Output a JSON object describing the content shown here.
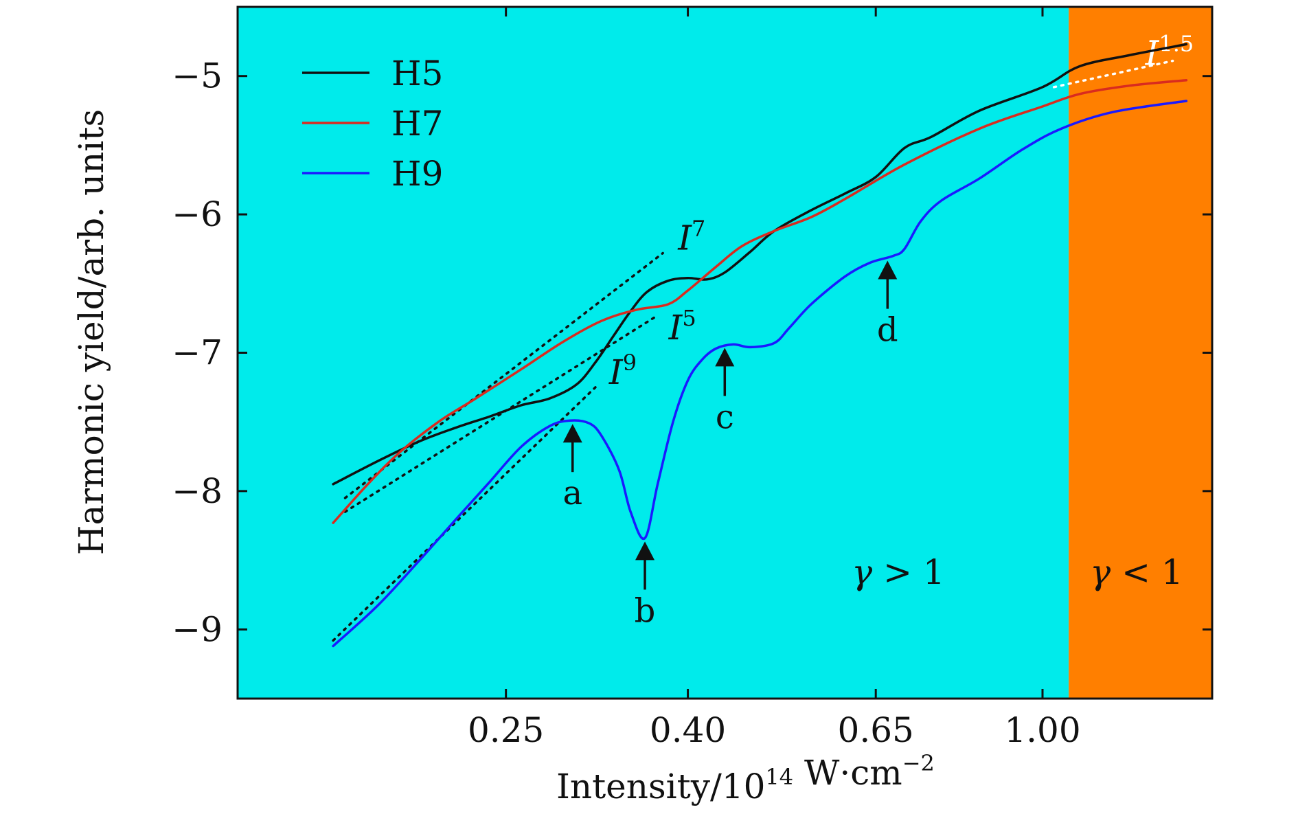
{
  "chart_data": {
    "type": "line",
    "title": "",
    "xlabel": "Intensity/10^14 W·cm^−2",
    "ylabel": "Harmonic yield/arb. units",
    "x_scale": "log",
    "xlim": [
      0.125,
      1.55
    ],
    "ylim": [
      -9.5,
      -4.5
    ],
    "x_ticks": [
      {
        "value": 0.25,
        "label": "0.25"
      },
      {
        "value": 0.4,
        "label": "0.40"
      },
      {
        "value": 0.65,
        "label": "0.65"
      },
      {
        "value": 1.0,
        "label": "1.00"
      }
    ],
    "y_ticks": [
      {
        "value": -5,
        "label": "−5"
      },
      {
        "value": -6,
        "label": "−6"
      },
      {
        "value": -7,
        "label": "−7"
      },
      {
        "value": -8,
        "label": "−8"
      },
      {
        "value": -9,
        "label": "−9"
      }
    ],
    "legend": {
      "position": "top-left"
    },
    "series": [
      {
        "name": "H5",
        "color": "#111111",
        "points": [
          [
            0.16,
            -7.95
          ],
          [
            0.18,
            -7.78
          ],
          [
            0.2,
            -7.64
          ],
          [
            0.22,
            -7.54
          ],
          [
            0.24,
            -7.46
          ],
          [
            0.26,
            -7.38
          ],
          [
            0.28,
            -7.33
          ],
          [
            0.3,
            -7.23
          ],
          [
            0.315,
            -7.07
          ],
          [
            0.33,
            -6.88
          ],
          [
            0.345,
            -6.7
          ],
          [
            0.36,
            -6.56
          ],
          [
            0.38,
            -6.48
          ],
          [
            0.4,
            -6.46
          ],
          [
            0.42,
            -6.47
          ],
          [
            0.44,
            -6.42
          ],
          [
            0.47,
            -6.27
          ],
          [
            0.5,
            -6.12
          ],
          [
            0.55,
            -5.97
          ],
          [
            0.6,
            -5.85
          ],
          [
            0.65,
            -5.73
          ],
          [
            0.7,
            -5.52
          ],
          [
            0.75,
            -5.44
          ],
          [
            0.85,
            -5.25
          ],
          [
            1.0,
            -5.08
          ],
          [
            1.1,
            -4.93
          ],
          [
            1.25,
            -4.85
          ],
          [
            1.45,
            -4.77
          ]
        ]
      },
      {
        "name": "H7",
        "color": "#d92b1f",
        "points": [
          [
            0.16,
            -8.23
          ],
          [
            0.175,
            -7.95
          ],
          [
            0.19,
            -7.72
          ],
          [
            0.21,
            -7.5
          ],
          [
            0.23,
            -7.34
          ],
          [
            0.26,
            -7.12
          ],
          [
            0.29,
            -6.92
          ],
          [
            0.32,
            -6.77
          ],
          [
            0.35,
            -6.69
          ],
          [
            0.38,
            -6.65
          ],
          [
            0.4,
            -6.55
          ],
          [
            0.43,
            -6.38
          ],
          [
            0.46,
            -6.23
          ],
          [
            0.5,
            -6.12
          ],
          [
            0.55,
            -6.02
          ],
          [
            0.6,
            -5.89
          ],
          [
            0.7,
            -5.64
          ],
          [
            0.85,
            -5.38
          ],
          [
            1.0,
            -5.22
          ],
          [
            1.1,
            -5.13
          ],
          [
            1.25,
            -5.07
          ],
          [
            1.45,
            -5.03
          ]
        ]
      },
      {
        "name": "H9",
        "color": "#1a1aff",
        "points": [
          [
            0.16,
            -9.12
          ],
          [
            0.18,
            -8.82
          ],
          [
            0.2,
            -8.5
          ],
          [
            0.22,
            -8.2
          ],
          [
            0.24,
            -7.93
          ],
          [
            0.26,
            -7.68
          ],
          [
            0.28,
            -7.53
          ],
          [
            0.295,
            -7.49
          ],
          [
            0.31,
            -7.51
          ],
          [
            0.32,
            -7.6
          ],
          [
            0.335,
            -7.85
          ],
          [
            0.345,
            -8.15
          ],
          [
            0.358,
            -8.34
          ],
          [
            0.37,
            -7.95
          ],
          [
            0.385,
            -7.5
          ],
          [
            0.4,
            -7.2
          ],
          [
            0.415,
            -7.05
          ],
          [
            0.43,
            -6.97
          ],
          [
            0.45,
            -6.94
          ],
          [
            0.47,
            -6.96
          ],
          [
            0.5,
            -6.93
          ],
          [
            0.52,
            -6.82
          ],
          [
            0.55,
            -6.65
          ],
          [
            0.6,
            -6.45
          ],
          [
            0.64,
            -6.35
          ],
          [
            0.68,
            -6.3
          ],
          [
            0.7,
            -6.25
          ],
          [
            0.73,
            -6.05
          ],
          [
            0.77,
            -5.9
          ],
          [
            0.85,
            -5.74
          ],
          [
            0.95,
            -5.53
          ],
          [
            1.05,
            -5.38
          ],
          [
            1.2,
            -5.26
          ],
          [
            1.45,
            -5.18
          ]
        ]
      }
    ],
    "power_law_fits": [
      {
        "label_base": "I",
        "label_exp": "7",
        "color": "#111111",
        "from": [
          0.165,
          -8.05
        ],
        "to": [
          0.375,
          -6.28
        ]
      },
      {
        "label_base": "I",
        "label_exp": "5",
        "color": "#111111",
        "from": [
          0.165,
          -8.15
        ],
        "to": [
          0.37,
          -6.73
        ]
      },
      {
        "label_base": "I",
        "label_exp": "9",
        "color": "#111111",
        "from": [
          0.16,
          -9.08
        ],
        "to": [
          0.315,
          -7.25
        ]
      },
      {
        "label_base": "I",
        "label_exp": "1.5",
        "color": "#ffffff",
        "from": [
          1.03,
          -5.08
        ],
        "to": [
          1.4,
          -4.89
        ]
      }
    ],
    "annotations": [
      {
        "label": "a",
        "x": 0.297,
        "y": -7.5,
        "direction": "up"
      },
      {
        "label": "b",
        "x": 0.358,
        "y": -8.35,
        "direction": "up"
      },
      {
        "label": "c",
        "x": 0.44,
        "y": -6.95,
        "direction": "up"
      },
      {
        "label": "d",
        "x": 0.67,
        "y": -6.32,
        "direction": "up"
      }
    ],
    "regions": [
      {
        "label": "γ > 1",
        "x_from": 0.125,
        "x_to": 1.07,
        "color": "#00ebeb"
      },
      {
        "label": "γ < 1",
        "x_from": 1.07,
        "x_to": 1.55,
        "color": "#ff7f00"
      }
    ]
  }
}
